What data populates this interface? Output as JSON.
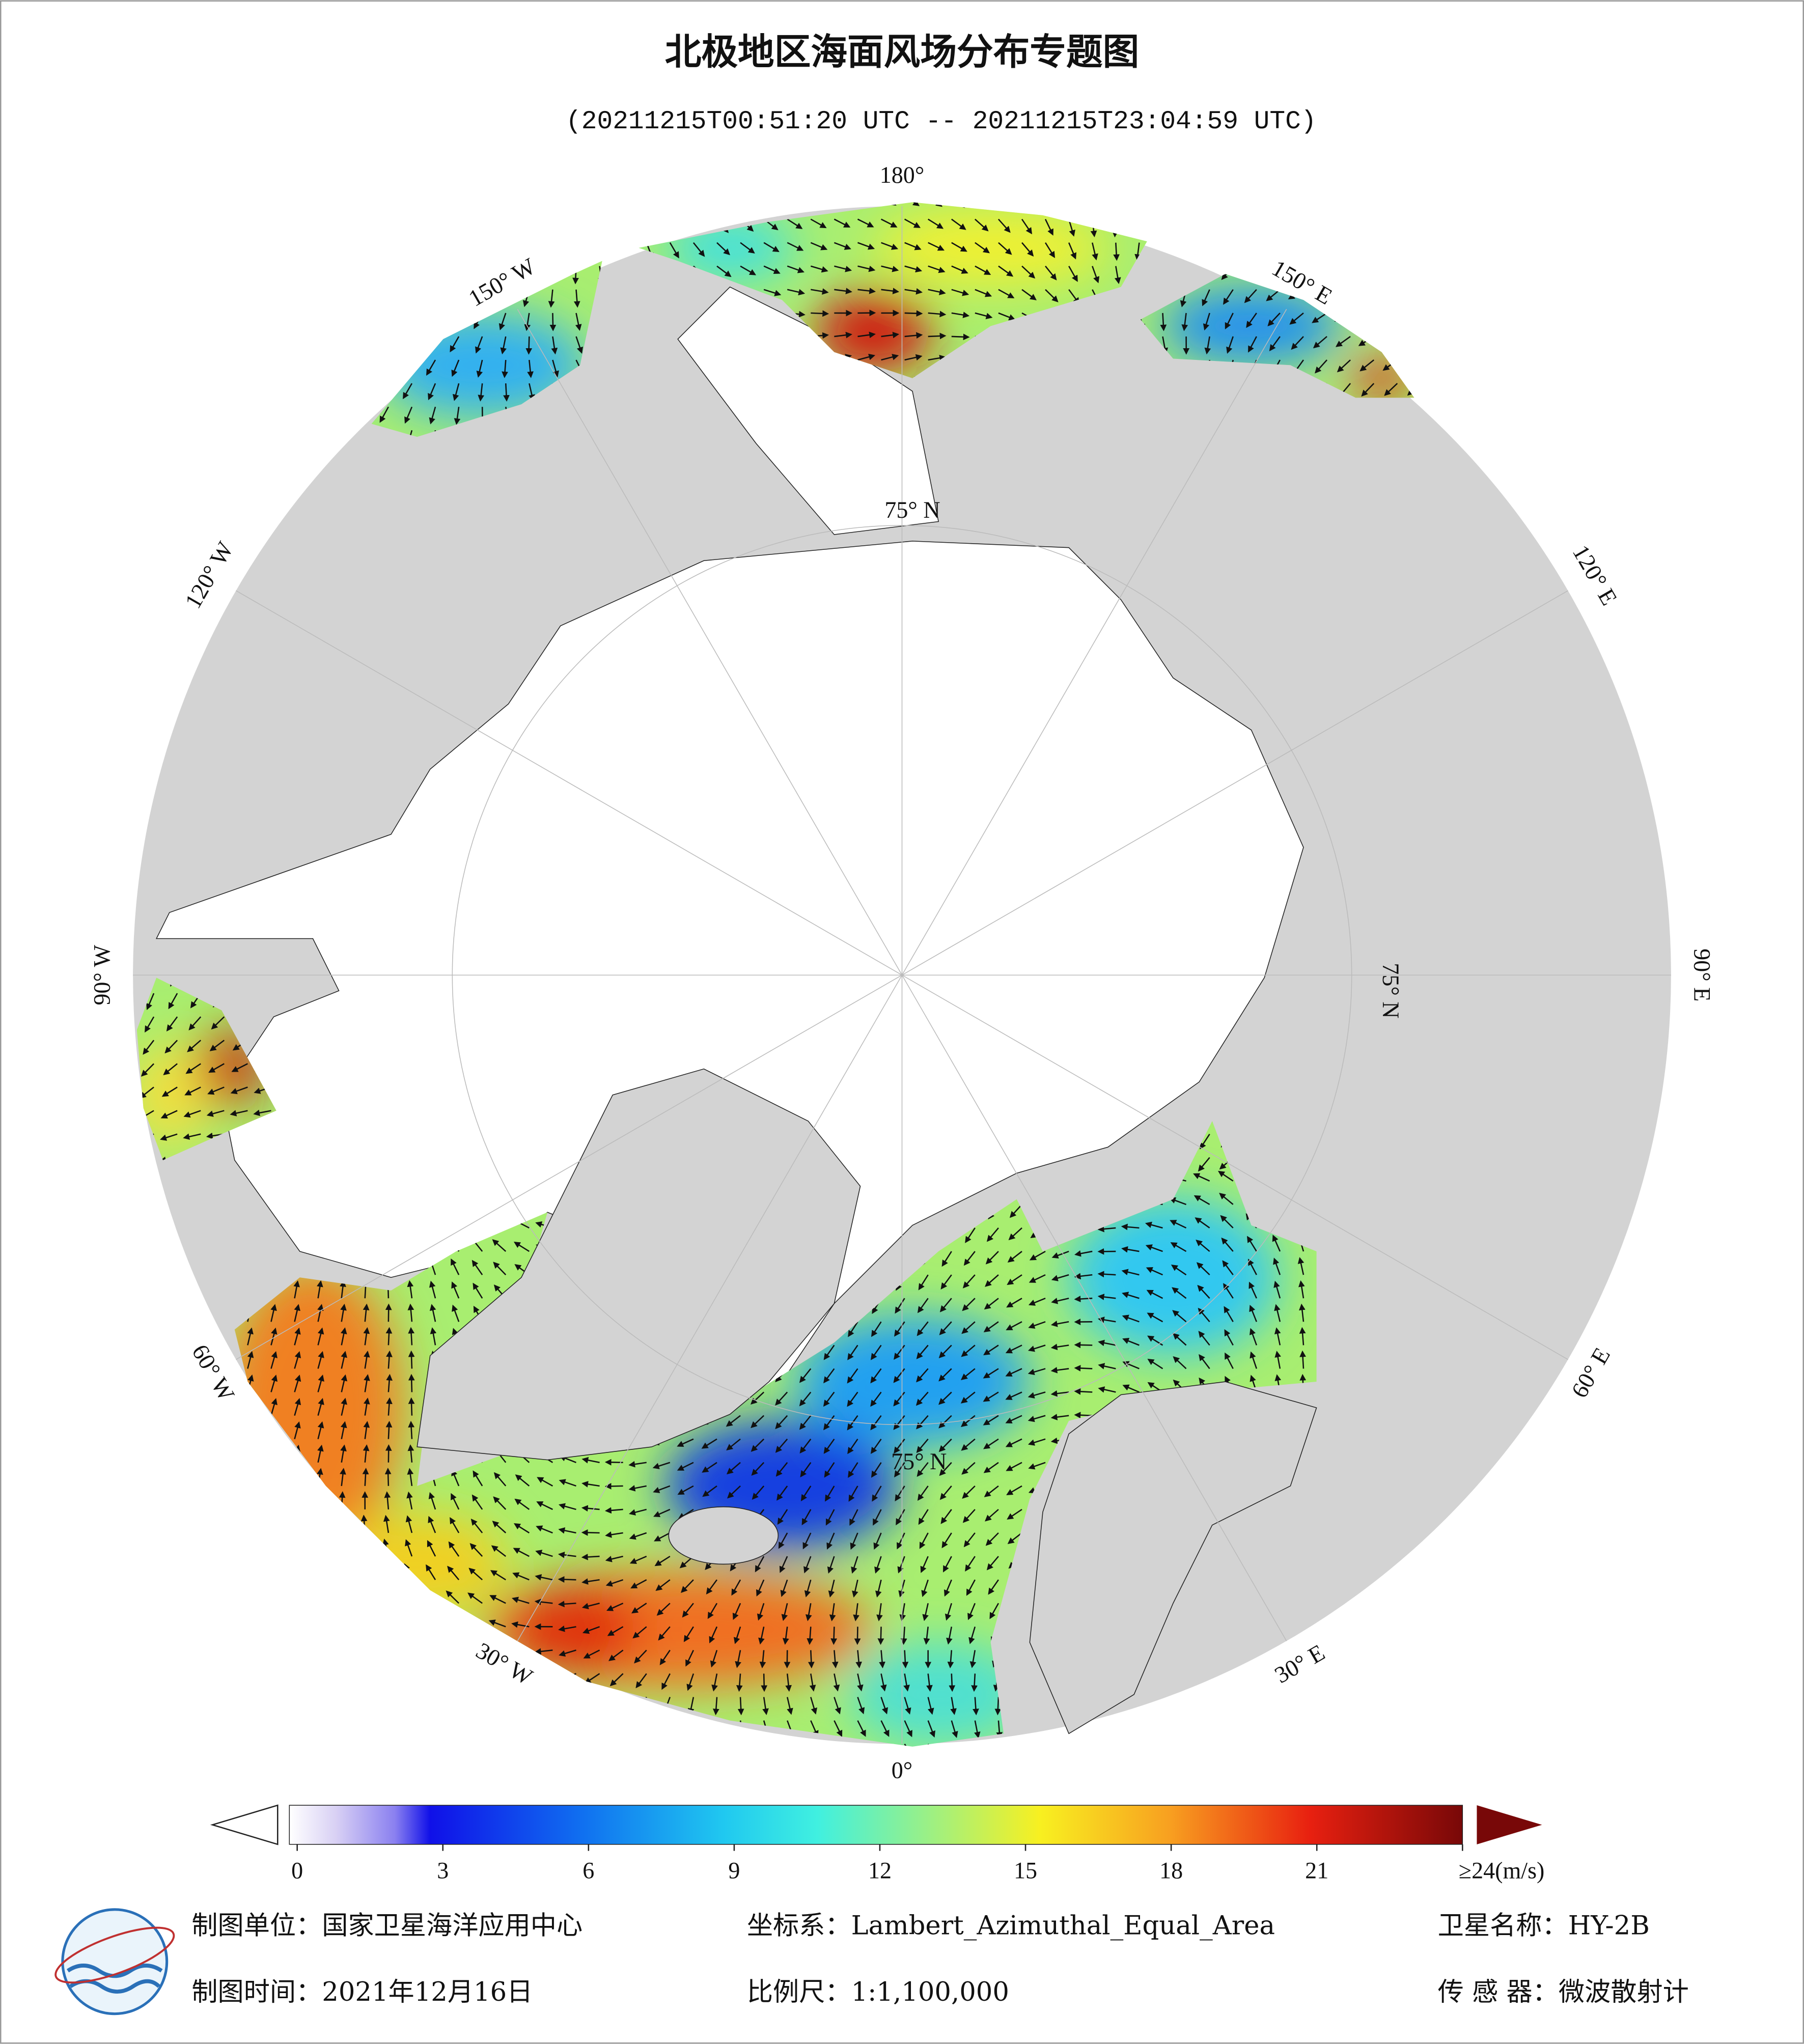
{
  "header": {
    "title": "北极地区海面风场分布专题图",
    "subtitle": "(20211215T00:51:20 UTC -- 20211215T23:04:59 UTC)"
  },
  "map": {
    "longitude_labels": [
      "180°",
      "150° E",
      "120° E",
      "90° E",
      "60° E",
      "30° E",
      "0°",
      "30° W",
      "60° W",
      "90° W",
      "120° W",
      "150° W"
    ],
    "latitude_labels": [
      "75° N",
      "75° N",
      "75° N"
    ]
  },
  "colorbar": {
    "range": [
      0,
      24
    ],
    "ticks": [
      0,
      3,
      6,
      9,
      12,
      15,
      18,
      21,
      {
        "value": 24,
        "label": "≥24(m/s)"
      }
    ]
  },
  "footer": {
    "producer": "制图单位：国家卫星海洋应用中心",
    "projection": "坐标系：Lambert_Azimuthal_Equal_Area",
    "satellite": "卫星名称：HY-2B",
    "date": "制图时间：2021年12月16日",
    "scale": "比例尺：1:1,100,000",
    "sensor": "传 感 器：微波散射计"
  }
}
